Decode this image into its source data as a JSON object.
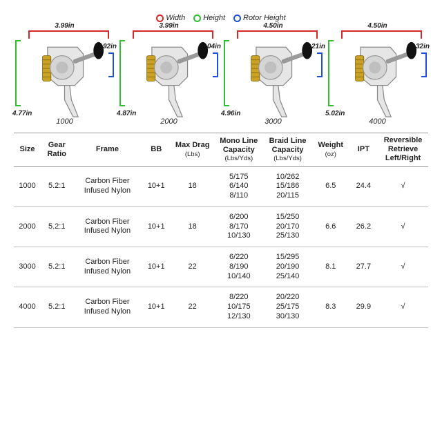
{
  "legend": {
    "items": [
      {
        "label": "Width",
        "color": "#d62728"
      },
      {
        "label": "Height",
        "color": "#2fbf2f"
      },
      {
        "label": "Rotor Height",
        "color": "#1f4fd6"
      }
    ]
  },
  "reels": [
    {
      "model": "1000",
      "width": "3.99in",
      "height": "4.77in",
      "rotor": "2.92in"
    },
    {
      "model": "2000",
      "width": "3.99in",
      "height": "4.87in",
      "rotor": "3.04in"
    },
    {
      "model": "3000",
      "width": "4.50in",
      "height": "4.96in",
      "rotor": "3.21in"
    },
    {
      "model": "4000",
      "width": "4.50in",
      "height": "5.02in",
      "rotor": "3.32in"
    }
  ],
  "table": {
    "headers": {
      "size": "Size",
      "gear_ratio": "Gear Ratio",
      "frame": "Frame",
      "bb": "BB",
      "max_drag": "Max Drag",
      "max_drag_sub": "(Lbs)",
      "mono": "Mono Line Capacity",
      "mono_sub": "(Lbs/Yds)",
      "braid": "Braid Line Capacity",
      "braid_sub": "(Lbs/Yds)",
      "weight": "Weight",
      "weight_sub": "(oz)",
      "ipt": "IPT",
      "rev": "Reversible Retrieve Left/Right"
    },
    "rows": [
      {
        "size": "1000",
        "gear_ratio": "5.2:1",
        "frame": "Carbon Fiber Infused Nylon",
        "bb": "10+1",
        "max_drag": "18",
        "mono": [
          "5/175",
          "6/140",
          "8/110"
        ],
        "braid": [
          "10/262",
          "15/186",
          "20/115"
        ],
        "weight": "6.5",
        "ipt": "24.4",
        "rev": "√"
      },
      {
        "size": "2000",
        "gear_ratio": "5.2:1",
        "frame": "Carbon Fiber Infused Nylon",
        "bb": "10+1",
        "max_drag": "18",
        "mono": [
          "6/200",
          "8/170",
          "10/130"
        ],
        "braid": [
          "15/250",
          "20/170",
          "25/130"
        ],
        "weight": "6.6",
        "ipt": "26.2",
        "rev": "√"
      },
      {
        "size": "3000",
        "gear_ratio": "5.2:1",
        "frame": "Carbon Fiber Infused Nylon",
        "bb": "10+1",
        "max_drag": "22",
        "mono": [
          "6/220",
          "8/190",
          "10/140"
        ],
        "braid": [
          "15/295",
          "20/190",
          "25/140"
        ],
        "weight": "8.1",
        "ipt": "27.7",
        "rev": "√"
      },
      {
        "size": "4000",
        "gear_ratio": "5.2:1",
        "frame": "Carbon Fiber Infused Nylon",
        "bb": "10+1",
        "max_drag": "22",
        "mono": [
          "8/220",
          "10/175",
          "12/130"
        ],
        "braid": [
          "20/220",
          "25/175",
          "30/130"
        ],
        "weight": "8.3",
        "ipt": "29.9",
        "rev": "√"
      }
    ]
  },
  "styling": {
    "background": "#ffffff",
    "border_color": "#999999",
    "row_border_color": "#bbbbbb",
    "text_color": "#222222",
    "reel_body_fill": "#e6e6e6",
    "reel_spool_fill": "#c9a227",
    "reel_handle_fill": "#9a9a9a",
    "reel_knob_fill": "#111111"
  }
}
